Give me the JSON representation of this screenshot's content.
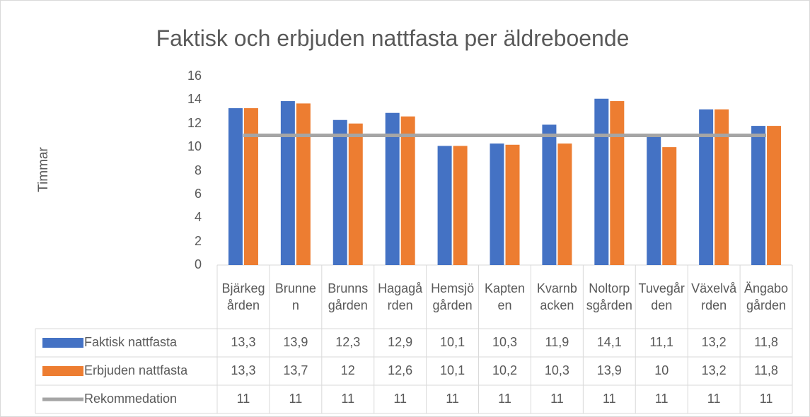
{
  "chart_data": {
    "type": "bar",
    "title": "Faktisk och erbjuden nattfasta per äldreboende",
    "y_label": "Timmar",
    "categories": [
      "Bjärkegården",
      "Brunnen",
      "Brunnsgården",
      "Hagagården",
      "Hemsjögården",
      "Kaptenen",
      "Kvarnbacken",
      "Noltorpsgården",
      "Tuvegården",
      "Växelvården",
      "Ängabogården"
    ],
    "series": [
      {
        "name": "Faktisk nattfasta",
        "type": "bar",
        "color": "#4472c4",
        "values": [
          13.3,
          13.9,
          12.3,
          12.9,
          10.1,
          10.3,
          11.9,
          14.1,
          11.1,
          13.2,
          11.8
        ],
        "value_labels": [
          "13,3",
          "13,9",
          "12,3",
          "12,9",
          "10,1",
          "10,3",
          "11,9",
          "14,1",
          "11,1",
          "13,2",
          "11,8"
        ]
      },
      {
        "name": "Erbjuden nattfasta",
        "type": "bar",
        "color": "#ed7d31",
        "values": [
          13.3,
          13.7,
          12,
          12.6,
          10.1,
          10.2,
          10.3,
          13.9,
          10,
          13.2,
          11.8
        ],
        "value_labels": [
          "13,3",
          "13,7",
          "12",
          "12,6",
          "10,1",
          "10,2",
          "10,3",
          "13,9",
          "10",
          "13,2",
          "11,8"
        ]
      },
      {
        "name": "Rekommedation",
        "type": "line",
        "color": "#a5a5a5",
        "values": [
          11,
          11,
          11,
          11,
          11,
          11,
          11,
          11,
          11,
          11,
          11
        ]
      }
    ],
    "ylim": [
      0,
      16
    ],
    "yticks": [
      0,
      2,
      4,
      6,
      8,
      10,
      12,
      14,
      16
    ],
    "grid": false,
    "data_table": true
  }
}
